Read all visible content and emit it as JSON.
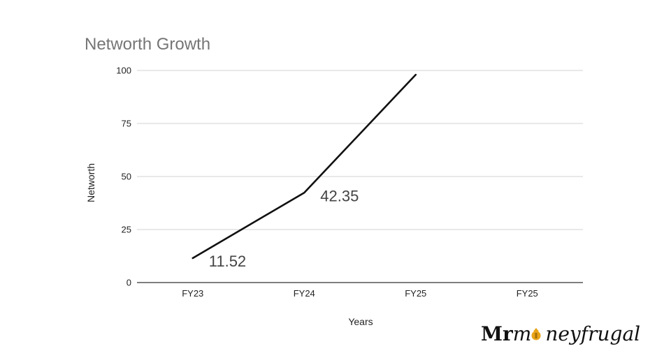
{
  "chart_data": {
    "type": "line",
    "title": "Networth Growth",
    "xlabel": "Years",
    "ylabel": "Networth",
    "categories": [
      "FY23",
      "FY24",
      "FY25",
      "FY25"
    ],
    "series": [
      {
        "values": [
          11.52,
          42.35,
          98,
          null
        ],
        "color": "#111111"
      }
    ],
    "data_labels": [
      {
        "index": 0,
        "text": "11.52"
      },
      {
        "index": 1,
        "text": "42.35"
      }
    ],
    "yticks": [
      "0",
      "25",
      "50",
      "75",
      "100"
    ],
    "ylim": [
      0,
      100
    ],
    "grid": true,
    "legend": "none"
  },
  "branding": {
    "logo_prefix": "Mr",
    "logo_m": "m",
    "logo_rest": "neyfrugal",
    "logo_icon": "money-bag-icon",
    "icon_color": "#e8a317"
  }
}
